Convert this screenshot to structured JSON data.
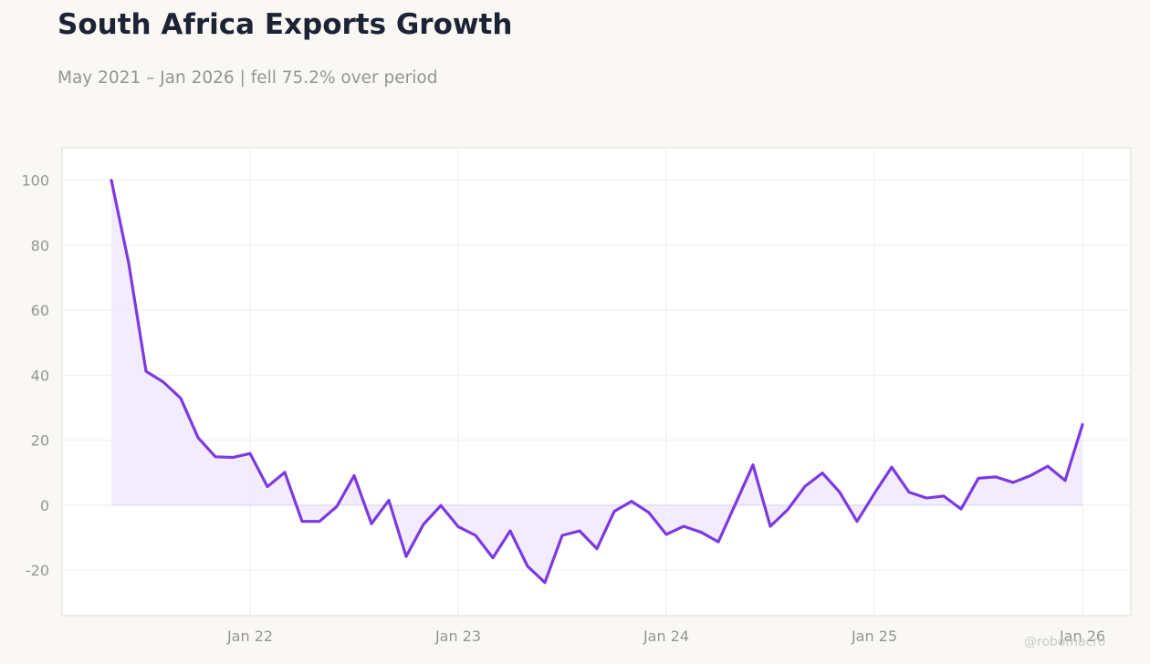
{
  "header": {
    "title": "South Africa Exports Growth",
    "subtitle": "May 2021 – Jan 2026 | fell 75.2% over period"
  },
  "watermark": "@robomacro",
  "colors": {
    "line": "#7c3ae0",
    "fill": "#efe6fb",
    "background": "#f9f8f5",
    "plot_background": "#ffffff",
    "grid": "#eeeeee",
    "title": "#1b2334",
    "muted_text": "#949494"
  },
  "chart_data": {
    "type": "area",
    "title": "South Africa Exports Growth",
    "subtitle": "May 2021 – Jan 2026 | fell 75.2% over period",
    "xlabel": "",
    "ylabel": "",
    "ylim": [
      -34,
      110
    ],
    "grid": true,
    "legend": "none",
    "x_ticks": [
      {
        "date": "2022-01",
        "label": "Jan 22"
      },
      {
        "date": "2023-01",
        "label": "Jan 23"
      },
      {
        "date": "2024-01",
        "label": "Jan 24"
      },
      {
        "date": "2025-01",
        "label": "Jan 25"
      },
      {
        "date": "2026-01",
        "label": "Jan 26"
      }
    ],
    "y_ticks": [
      100,
      80,
      60,
      40,
      20,
      0,
      -20
    ],
    "x": [
      "2021-05",
      "2021-06",
      "2021-07",
      "2021-08",
      "2021-09",
      "2021-10",
      "2021-11",
      "2021-12",
      "2022-01",
      "2022-02",
      "2022-03",
      "2022-04",
      "2022-05",
      "2022-06",
      "2022-07",
      "2022-08",
      "2022-09",
      "2022-10",
      "2022-11",
      "2022-12",
      "2023-01",
      "2023-02",
      "2023-03",
      "2023-04",
      "2023-05",
      "2023-06",
      "2023-07",
      "2023-08",
      "2023-09",
      "2023-10",
      "2023-11",
      "2023-12",
      "2024-01",
      "2024-02",
      "2024-03",
      "2024-04",
      "2024-05",
      "2024-06",
      "2024-07",
      "2024-08",
      "2024-09",
      "2024-10",
      "2024-11",
      "2024-12",
      "2025-01",
      "2025-02",
      "2025-03",
      "2025-04",
      "2025-05",
      "2025-06",
      "2025-07",
      "2025-08",
      "2025-09",
      "2025-10",
      "2025-11",
      "2025-12",
      "2026-01"
    ],
    "series": [
      {
        "values": [
          100,
          74.5,
          41.2,
          37.9,
          32.9,
          20.8,
          14.9,
          14.7,
          15.9,
          5.7,
          10.1,
          -5.0,
          -5.0,
          -0.4,
          9.1,
          -5.7,
          1.5,
          -15.8,
          -5.9,
          -0.1,
          -6.6,
          -9.3,
          -16.2,
          -7.9,
          -18.8,
          -23.8,
          -9.3,
          -7.9,
          -13.4,
          -1.9,
          1.2,
          -2.3,
          -9.0,
          -6.5,
          -8.3,
          -11.3,
          0.5,
          12.4,
          -6.5,
          -1.4,
          5.8,
          9.9,
          4.0,
          -5.0,
          3.6,
          11.7,
          4.0,
          2.2,
          2.8,
          -1.2,
          8.3,
          8.7,
          7.0,
          9.1,
          12.0,
          7.6,
          24.8
        ]
      }
    ]
  }
}
